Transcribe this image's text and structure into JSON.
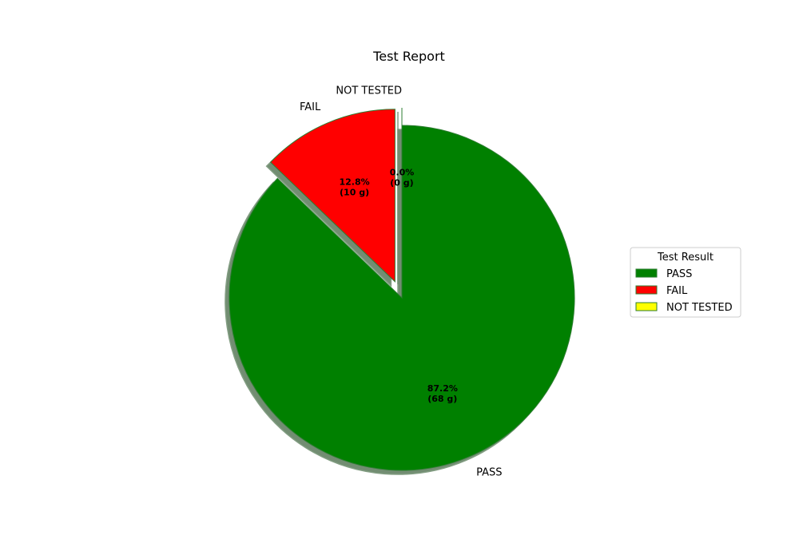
{
  "chart_data": {
    "type": "pie",
    "title": "Test Report",
    "slices": [
      {
        "label": "PASS",
        "value": 68,
        "pct": "87.2%",
        "amount": "(68 g)",
        "color": "#008000",
        "explode": false
      },
      {
        "label": "FAIL",
        "value": 10,
        "pct": "12.8%",
        "amount": "(10 g)",
        "color": "#ff0000",
        "explode": true
      },
      {
        "label": "NOT TESTED",
        "value": 0,
        "pct": "0.0%",
        "amount": "(0 g)",
        "color": "#ffff00",
        "explode": true
      }
    ],
    "start_angle_deg": 90,
    "direction": "clockwise",
    "shadow": true,
    "edge_color": "#2e7d32",
    "legend": {
      "title": "Test Result",
      "placement": "center-right",
      "entries": [
        "PASS",
        "FAIL",
        "NOT TESTED"
      ]
    }
  }
}
